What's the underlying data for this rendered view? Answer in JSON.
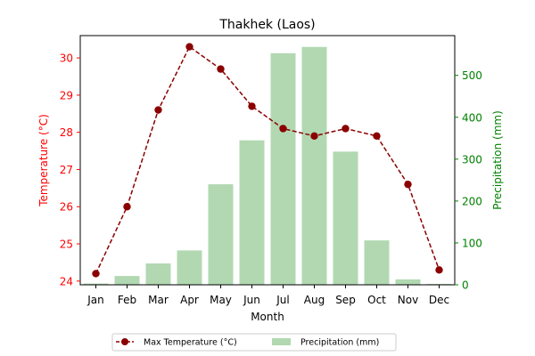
{
  "chart_data": {
    "type": "bar",
    "title": "Thakhek (Laos)",
    "xlabel": "Month",
    "ylabel_left": "Temperature (°C)",
    "ylabel_right": "Precipitation (mm)",
    "categories": [
      "Jan",
      "Feb",
      "Mar",
      "Apr",
      "May",
      "Jun",
      "Jul",
      "Aug",
      "Sep",
      "Oct",
      "Nov",
      "Dec"
    ],
    "series": [
      {
        "name": "Max Temperature (°C)",
        "type": "line",
        "axis": "left",
        "values": [
          24.2,
          26.0,
          28.6,
          30.3,
          29.7,
          28.7,
          28.1,
          27.9,
          28.1,
          27.9,
          26.6,
          24.3
        ],
        "color": "#8b0000"
      },
      {
        "name": "Precipitation (mm)",
        "type": "bar",
        "axis": "right",
        "values": [
          3,
          21,
          51,
          82,
          240,
          345,
          553,
          568,
          318,
          106,
          13,
          2
        ],
        "color": "#b2d8b2"
      }
    ],
    "ylim_left": [
      23.9,
      30.6
    ],
    "yticks_left": [
      24,
      25,
      26,
      27,
      28,
      29,
      30
    ],
    "ylim_right": [
      0,
      595
    ],
    "yticks_right": [
      0,
      100,
      200,
      300,
      400,
      500
    ],
    "left_axis_color": "#ff0000",
    "right_axis_color": "#008000",
    "grid": false,
    "legend_position": "bottom-center"
  }
}
